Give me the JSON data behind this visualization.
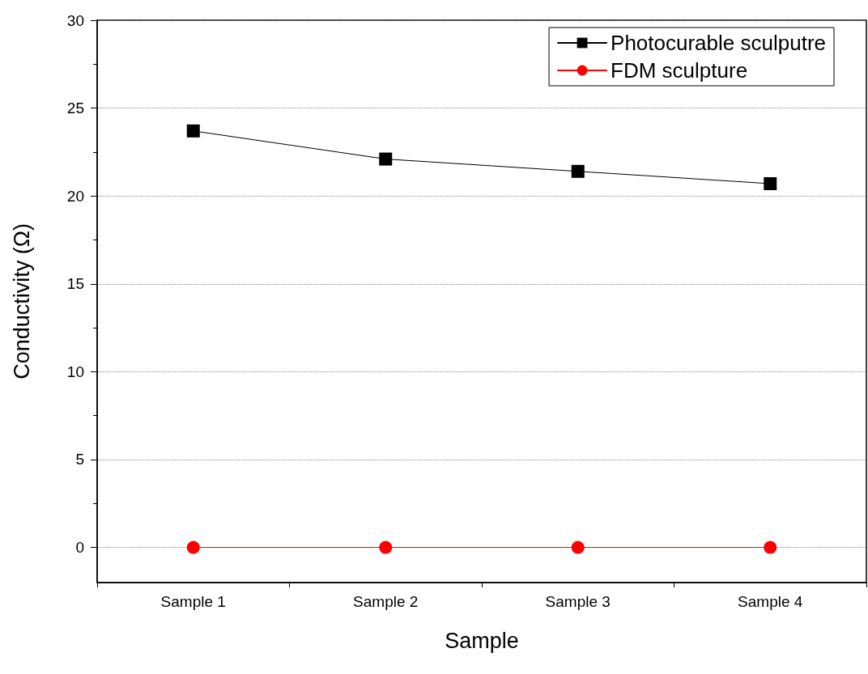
{
  "chart_data": {
    "type": "line",
    "xlabel": "Sample",
    "ylabel": "Conductivity (Ω)",
    "categories": [
      "Sample 1",
      "Sample 2",
      "Sample 3",
      "Sample 4"
    ],
    "series": [
      {
        "name": "Photocurable sculputre",
        "color": "#000000",
        "marker": "square",
        "values": [
          23.7,
          22.1,
          21.4,
          20.7
        ]
      },
      {
        "name": "FDM sculpture",
        "color": "#ff0000",
        "marker": "circle",
        "values": [
          0,
          0,
          0,
          0
        ]
      }
    ],
    "ylim": [
      -2,
      30
    ],
    "yticks": [
      0,
      5,
      10,
      15,
      20,
      25,
      30
    ],
    "grid": "y",
    "legend": "top right",
    "line_style": "solid"
  }
}
